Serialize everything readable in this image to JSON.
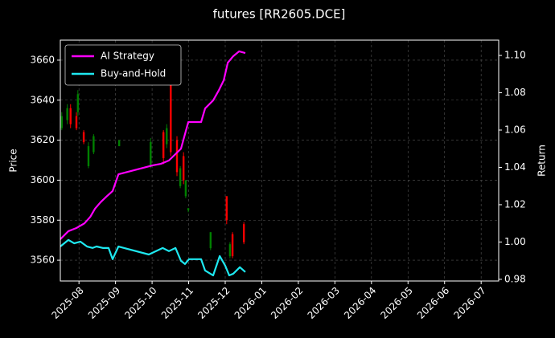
{
  "chart_data": {
    "type": "candlestick",
    "title": "futures [RR2605.DCE]",
    "ylabel": "Price",
    "y2label": "Return",
    "xlim": [
      7.49,
      19.48
    ],
    "xticks": [
      {
        "value": 8,
        "label": "2025-08"
      },
      {
        "value": 9,
        "label": "2025-09"
      },
      {
        "value": 10,
        "label": "2025-10"
      },
      {
        "value": 11,
        "label": "2025-11"
      },
      {
        "value": 12,
        "label": "2025-12"
      },
      {
        "value": 13,
        "label": "2026-01"
      },
      {
        "value": 14,
        "label": "2026-02"
      },
      {
        "value": 15,
        "label": "2026-03"
      },
      {
        "value": 16,
        "label": "2026-04"
      },
      {
        "value": 17,
        "label": "2026-05"
      },
      {
        "value": 18,
        "label": "2026-06"
      },
      {
        "value": 19,
        "label": "2026-07"
      }
    ],
    "ylim": [
      3549.6,
      3670
    ],
    "yticks": [
      3560,
      3580,
      3600,
      3620,
      3640,
      3660
    ],
    "y2lim": [
      0.9791,
      1.1082
    ],
    "y2ticks": [
      0.98,
      {
        "value": 1,
        "label": "1.00"
      },
      1.02,
      1.04,
      1.06,
      1.08,
      {
        "value": 1.1,
        "label": "1.10"
      }
    ],
    "grid": true,
    "legend": "upper left",
    "up_color": "#008000",
    "down_color": "#ff0000",
    "candles": {
      "x": [
        7.53,
        7.68,
        7.77,
        7.93,
        7.97,
        8.13,
        8.26,
        8.4,
        9.1,
        9.96,
        10.31,
        10.4,
        10.51,
        10.68,
        10.77,
        10.86,
        10.92,
        10.99,
        11.6,
        12.04,
        12.13,
        12.2,
        12.51
      ],
      "open": [
        3626,
        3630,
        3636,
        3632,
        3634,
        3624,
        3607,
        3614,
        3617,
        3607,
        3624,
        3618,
        3652,
        3620,
        3597,
        3612,
        3592,
        3585,
        3566,
        3592,
        3562,
        3573,
        3578
      ],
      "high": [
        3634,
        3638,
        3638,
        3634,
        3645,
        3625,
        3619,
        3623,
        3620,
        3621,
        3625,
        3628,
        3666,
        3622,
        3607,
        3614,
        3600,
        3586,
        3574,
        3592,
        3569,
        3574,
        3579
      ],
      "low": [
        3625,
        3628,
        3626,
        3625,
        3632,
        3618,
        3606,
        3613,
        3617,
        3606,
        3608,
        3616,
        3612,
        3602,
        3596,
        3598,
        3591,
        3584,
        3565,
        3578,
        3561,
        3561,
        3568
      ],
      "close": [
        3632,
        3636,
        3628,
        3626,
        3643,
        3619,
        3617,
        3622,
        3620,
        3619,
        3611,
        3626,
        3614,
        3604,
        3606,
        3600,
        3600,
        3586,
        3574,
        3580,
        3568,
        3562,
        3569
      ]
    },
    "series": [
      {
        "name": "AI Strategy",
        "color": "#ff00ff",
        "axis": "y2",
        "x": [
          7.49,
          7.71,
          7.93,
          8.15,
          8.31,
          8.44,
          8.59,
          8.75,
          8.92,
          9.08,
          10.02,
          10.24,
          10.46,
          10.57,
          10.79,
          10.99,
          11.34,
          11.45,
          11.67,
          11.83,
          11.96,
          12.07,
          12.22,
          12.38,
          12.55
        ],
        "values": [
          1.0015,
          1.0058,
          1.0075,
          1.01,
          1.0135,
          1.0179,
          1.0213,
          1.0243,
          1.0273,
          1.0363,
          1.0411,
          1.0419,
          1.0437,
          1.0458,
          1.05,
          1.0643,
          1.0643,
          1.0716,
          1.0759,
          1.0815,
          1.0867,
          1.0961,
          1.0996,
          1.1022,
          1.1013
        ]
      },
      {
        "name": "Buy-and-Hold",
        "color": "#1ee8f0",
        "axis": "y2",
        "x": [
          7.49,
          7.71,
          7.87,
          8.04,
          8.22,
          8.37,
          8.48,
          8.66,
          8.81,
          8.92,
          9.08,
          9.91,
          10.29,
          10.46,
          10.64,
          10.79,
          10.9,
          11.01,
          11.34,
          11.45,
          11.67,
          11.85,
          12.0,
          12.11,
          12.22,
          12.4,
          12.55
        ],
        "values": [
          0.9976,
          1.0011,
          0.9993,
          1.0002,
          0.9976,
          0.9968,
          0.9976,
          0.9968,
          0.9968,
          0.9908,
          0.9976,
          0.9933,
          0.9968,
          0.9951,
          0.9968,
          0.9899,
          0.9882,
          0.9908,
          0.9908,
          0.9847,
          0.9821,
          0.9925,
          0.9873,
          0.9821,
          0.983,
          0.9865,
          0.9839
        ]
      }
    ]
  }
}
